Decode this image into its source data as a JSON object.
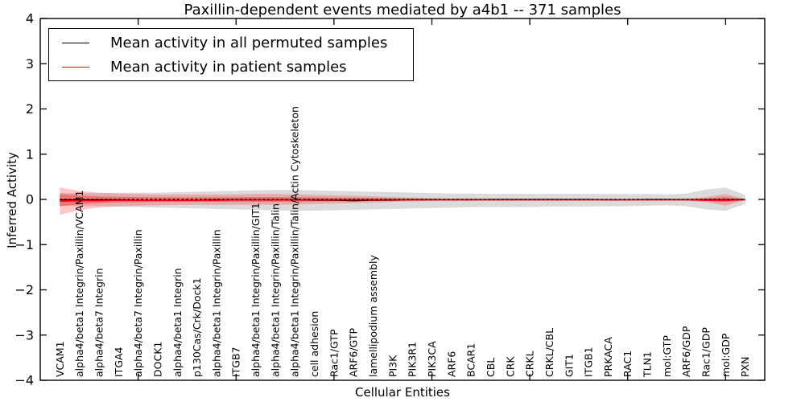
{
  "figure": {
    "background": "#ffffff"
  },
  "chart_data": {
    "type": "line",
    "title": "Paxillin-dependent events mediated by a4b1 -- 371 samples",
    "xlabel": "Cellular Entities",
    "ylabel": "Inferred Activity",
    "ylim": [
      -4,
      4
    ],
    "yticks": [
      4,
      3,
      2,
      1,
      0,
      -1,
      -2,
      -3,
      -4
    ],
    "ytick_labels": [
      "4",
      "3",
      "2",
      "1",
      "0",
      "−1",
      "−2",
      "−3",
      "−4"
    ],
    "xtick_positions": [
      5,
      10,
      15,
      20,
      25,
      30,
      35
    ],
    "grid": false,
    "categories": [
      "VCAM1",
      "alpha4/beta1 Integrin/Paxillin/VCAM1",
      "alpha4/beta7 Integrin",
      "ITGA4",
      "alpha4/beta7 Integrin/Paxillin",
      "DOCK1",
      "alpha4/beta1 Integrin",
      "p130Cas/Crk/Dock1",
      "alpha4/beta1 Integrin/Paxillin",
      "ITGB7",
      "alpha4/beta1 Integrin/Paxillin/GIT1",
      "alpha4/beta1 Integrin/Paxillin/Talin",
      "alpha4/beta1 Integrin/Paxillin/Talin/Actin Cytoskeleton",
      "cell adhesion",
      "Rac1/GTP",
      "ARF6/GTP",
      "lamellipodium assembly",
      "PI3K",
      "PIK3R1",
      "PIK3CA",
      "ARF6",
      "BCAR1",
      "CBL",
      "CRK",
      "CRKL",
      "CRKL/CBL",
      "GIT1",
      "ITGB1",
      "PRKACA",
      "RAC1",
      "TLN1",
      "mol:GTP",
      "ARF6/GDP",
      "Rac1/GDP",
      "mol:GDP",
      "PXN"
    ],
    "series": [
      {
        "name": "Mean activity in all permuted samples",
        "color": "#000000",
        "style": "solid",
        "values": [
          -0.01,
          -0.01,
          -0.01,
          -0.01,
          -0.02,
          -0.02,
          -0.02,
          -0.02,
          -0.01,
          -0.01,
          -0.01,
          -0.01,
          -0.01,
          -0.02,
          -0.02,
          -0.03,
          -0.02,
          -0.02,
          -0.01,
          -0.01,
          -0.01,
          -0.01,
          0,
          0,
          0,
          0,
          0,
          0,
          -0.01,
          -0.01,
          0,
          0,
          -0.01,
          -0.01,
          -0.01,
          0
        ]
      },
      {
        "name": "Mean activity in patient samples",
        "color": "#ff0000",
        "style": "solid",
        "values": [
          -0.04,
          -0.03,
          -0.03,
          -0.02,
          -0.02,
          -0.02,
          -0.02,
          -0.02,
          -0.02,
          -0.01,
          -0.01,
          -0.01,
          -0.01,
          -0.01,
          -0.01,
          -0.01,
          -0.01,
          -0.01,
          -0.01,
          -0.01,
          -0.01,
          -0.01,
          -0.01,
          -0.01,
          -0.01,
          -0.01,
          -0.01,
          -0.01,
          -0.01,
          -0.01,
          -0.01,
          -0.01,
          -0.01,
          -0.02,
          -0.02,
          -0.01
        ]
      }
    ],
    "bands": [
      {
        "name": "permuted samples spread",
        "color": "#b0b0b0",
        "opacity": 0.45,
        "upper": [
          0.14,
          0.14,
          0.14,
          0.15,
          0.15,
          0.15,
          0.16,
          0.17,
          0.18,
          0.19,
          0.2,
          0.21,
          0.21,
          0.2,
          0.19,
          0.18,
          0.17,
          0.16,
          0.15,
          0.14,
          0.13,
          0.13,
          0.12,
          0.12,
          0.12,
          0.12,
          0.12,
          0.12,
          0.12,
          0.12,
          0.12,
          0.11,
          0.13,
          0.22,
          0.26,
          0.1
        ],
        "lower": [
          -0.14,
          -0.15,
          -0.15,
          -0.16,
          -0.17,
          -0.18,
          -0.19,
          -0.2,
          -0.21,
          -0.22,
          -0.23,
          -0.24,
          -0.25,
          -0.25,
          -0.24,
          -0.23,
          -0.22,
          -0.21,
          -0.2,
          -0.19,
          -0.18,
          -0.17,
          -0.17,
          -0.17,
          -0.17,
          -0.16,
          -0.16,
          -0.16,
          -0.15,
          -0.15,
          -0.14,
          -0.13,
          -0.15,
          -0.22,
          -0.25,
          -0.1
        ]
      },
      {
        "name": "patient samples spread",
        "color": "#ff0000",
        "opacity": 0.22,
        "upper": [
          0.26,
          0.19,
          0.15,
          0.13,
          0.12,
          0.11,
          0.11,
          0.11,
          0.11,
          0.11,
          0.12,
          0.12,
          0.11,
          0.1,
          0.09,
          0.08,
          0.07,
          0.05,
          0.04,
          0.03,
          0.02,
          0.02,
          0.01,
          0.01,
          0.01,
          0.01,
          0.01,
          0.01,
          0.01,
          0.01,
          0.01,
          0.01,
          0.02,
          0.05,
          0.12,
          0.01
        ],
        "lower": [
          -0.34,
          -0.24,
          -0.18,
          -0.15,
          -0.14,
          -0.13,
          -0.12,
          -0.12,
          -0.12,
          -0.12,
          -0.12,
          -0.12,
          -0.11,
          -0.1,
          -0.09,
          -0.08,
          -0.07,
          -0.05,
          -0.04,
          -0.03,
          -0.02,
          -0.02,
          -0.01,
          -0.01,
          -0.01,
          -0.01,
          -0.01,
          -0.01,
          -0.01,
          -0.01,
          -0.01,
          -0.01,
          -0.02,
          -0.06,
          -0.14,
          -0.01
        ]
      }
    ],
    "zero_line": {
      "y": 0,
      "style": "dashed",
      "color": "#000000"
    },
    "legend": {
      "position": "upper-left",
      "entries": [
        {
          "label": "Mean activity in all permuted samples",
          "color": "#000000"
        },
        {
          "label": "Mean activity in patient samples",
          "color": "#ff0000"
        }
      ]
    }
  }
}
